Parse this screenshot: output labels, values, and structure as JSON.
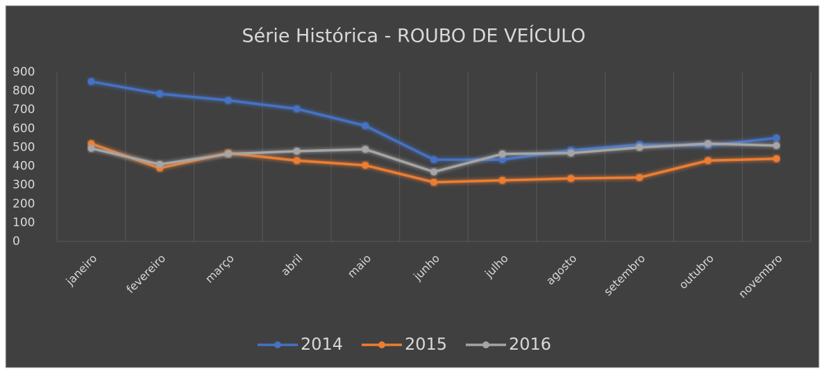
{
  "chart_data": {
    "type": "line",
    "title": "Série Histórica - ROUBO DE VEÍCULO",
    "categories": [
      "janeiro",
      "fevereiro",
      "março",
      "abril",
      "maio",
      "junho",
      "julho",
      "agosto",
      "setembro",
      "outubro",
      "novembro"
    ],
    "series": [
      {
        "name": "2014",
        "color": "#4472c4",
        "values": [
          850,
          785,
          750,
          705,
          615,
          435,
          435,
          485,
          515,
          510,
          550
        ]
      },
      {
        "name": "2015",
        "color": "#ed7d31",
        "values": [
          520,
          390,
          470,
          430,
          405,
          315,
          325,
          335,
          340,
          430,
          440
        ]
      },
      {
        "name": "2016",
        "color": "#a5a5a5",
        "values": [
          495,
          410,
          465,
          480,
          490,
          370,
          465,
          470,
          500,
          520,
          510
        ]
      }
    ],
    "ylim": [
      0,
      900
    ],
    "yticks": [
      0,
      100,
      200,
      300,
      400,
      500,
      600,
      700,
      800,
      900
    ],
    "category_grid": true,
    "legend": "bottom"
  }
}
